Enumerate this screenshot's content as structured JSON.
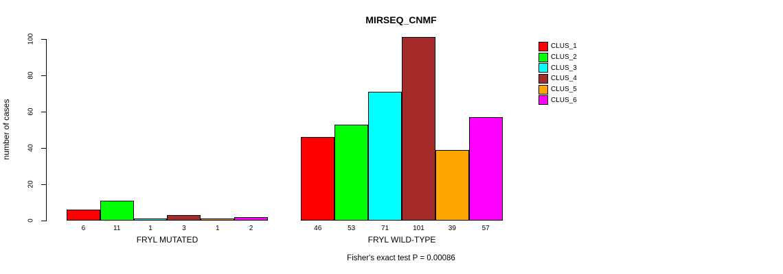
{
  "chart_data": {
    "type": "bar",
    "title": "MIRSEQ_CNMF",
    "ylabel": "number of cases",
    "xlabel": "",
    "ylim": [
      0,
      100
    ],
    "yticks": [
      0,
      20,
      40,
      60,
      80,
      100
    ],
    "grid": false,
    "legend_position": "right",
    "bar_value_labels_shown": true,
    "bar_border_color": "#000000",
    "categories": [
      "FRYL MUTATED",
      "FRYL WILD-TYPE"
    ],
    "series": [
      {
        "name": "CLUS_1",
        "color": "#ff0000",
        "values": [
          6,
          46
        ]
      },
      {
        "name": "CLUS_2",
        "color": "#00ff00",
        "values": [
          11,
          53
        ]
      },
      {
        "name": "CLUS_3",
        "color": "#00ffff",
        "values": [
          1,
          71
        ]
      },
      {
        "name": "CLUS_4",
        "color": "#a52a2a",
        "values": [
          3,
          101
        ]
      },
      {
        "name": "CLUS_5",
        "color": "#ffa500",
        "values": [
          1,
          39
        ]
      },
      {
        "name": "CLUS_6",
        "color": "#ff00ff",
        "values": [
          2,
          57
        ]
      }
    ],
    "annotation": "Fisher's exact test P = 0.00086"
  }
}
